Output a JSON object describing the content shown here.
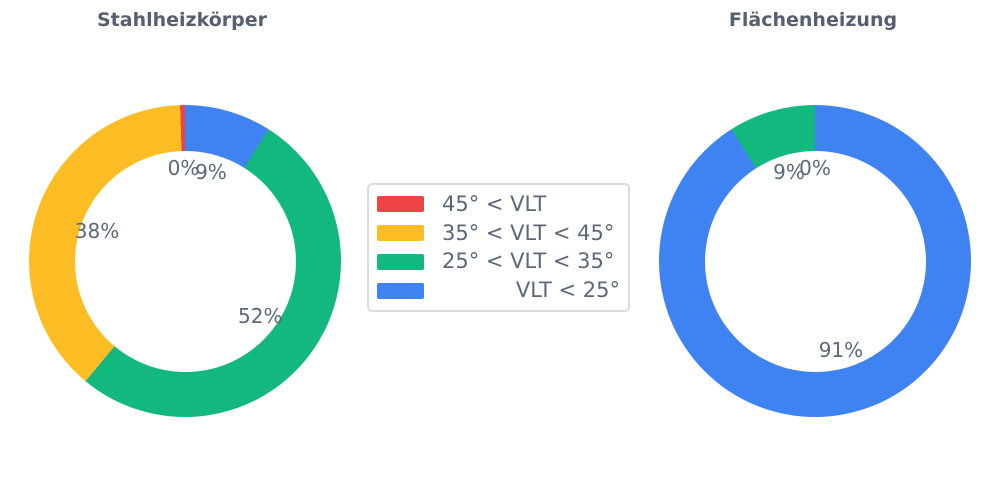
{
  "colors": {
    "red": "#EF4444",
    "yellow": "#FBBD23",
    "green": "#13B87F",
    "blue": "#3F82F2",
    "label_text": "#5c6878",
    "title_text": "#565f6e",
    "legend_border": "#d9dde2",
    "background": "#ffffff"
  },
  "chart_data": [
    {
      "type": "pie",
      "title": "Stahlheizkörper",
      "hole_ratio": 0.71,
      "direction": "counterclockwise",
      "rotation_deg": 0,
      "legend_position": "center between charts",
      "slices": [
        {
          "legend_label": "45° < VLT",
          "color": "#EF4444",
          "value_pct": 0.5,
          "display_label": "0%"
        },
        {
          "legend_label": "35° < VLT < 45°",
          "color": "#FBBD23",
          "value_pct": 38.5,
          "display_label": "38%"
        },
        {
          "legend_label": "25° < VLT < 35°",
          "color": "#13B87F",
          "value_pct": 52,
          "display_label": "52%"
        },
        {
          "legend_label": "VLT < 25°",
          "color": "#3F82F2",
          "value_pct": 9,
          "display_label": "9%"
        }
      ]
    },
    {
      "type": "pie",
      "title": "Flächenheizung",
      "hole_ratio": 0.71,
      "direction": "counterclockwise",
      "rotation_deg": 0,
      "legend_position": "center between charts",
      "slices": [
        {
          "legend_label": "45° < VLT",
          "color": "#EF4444",
          "value_pct": 0,
          "display_label": "0%"
        },
        {
          "legend_label": "35° < VLT < 45°",
          "color": "#FBBD23",
          "value_pct": 0,
          "display_label": ""
        },
        {
          "legend_label": "25° < VLT < 35°",
          "color": "#13B87F",
          "value_pct": 9,
          "display_label": "9%"
        },
        {
          "legend_label": "VLT < 25°",
          "color": "#3F82F2",
          "value_pct": 91,
          "display_label": "91%"
        }
      ]
    }
  ],
  "legend": {
    "items": [
      {
        "label": "45° < VLT",
        "color": "#EF4444"
      },
      {
        "label": "35° < VLT < 45°",
        "color": "#FBBD23"
      },
      {
        "label": "25° < VLT < 35°",
        "color": "#13B87F"
      },
      {
        "label": "VLT < 25°",
        "color": "#3F82F2"
      }
    ]
  }
}
